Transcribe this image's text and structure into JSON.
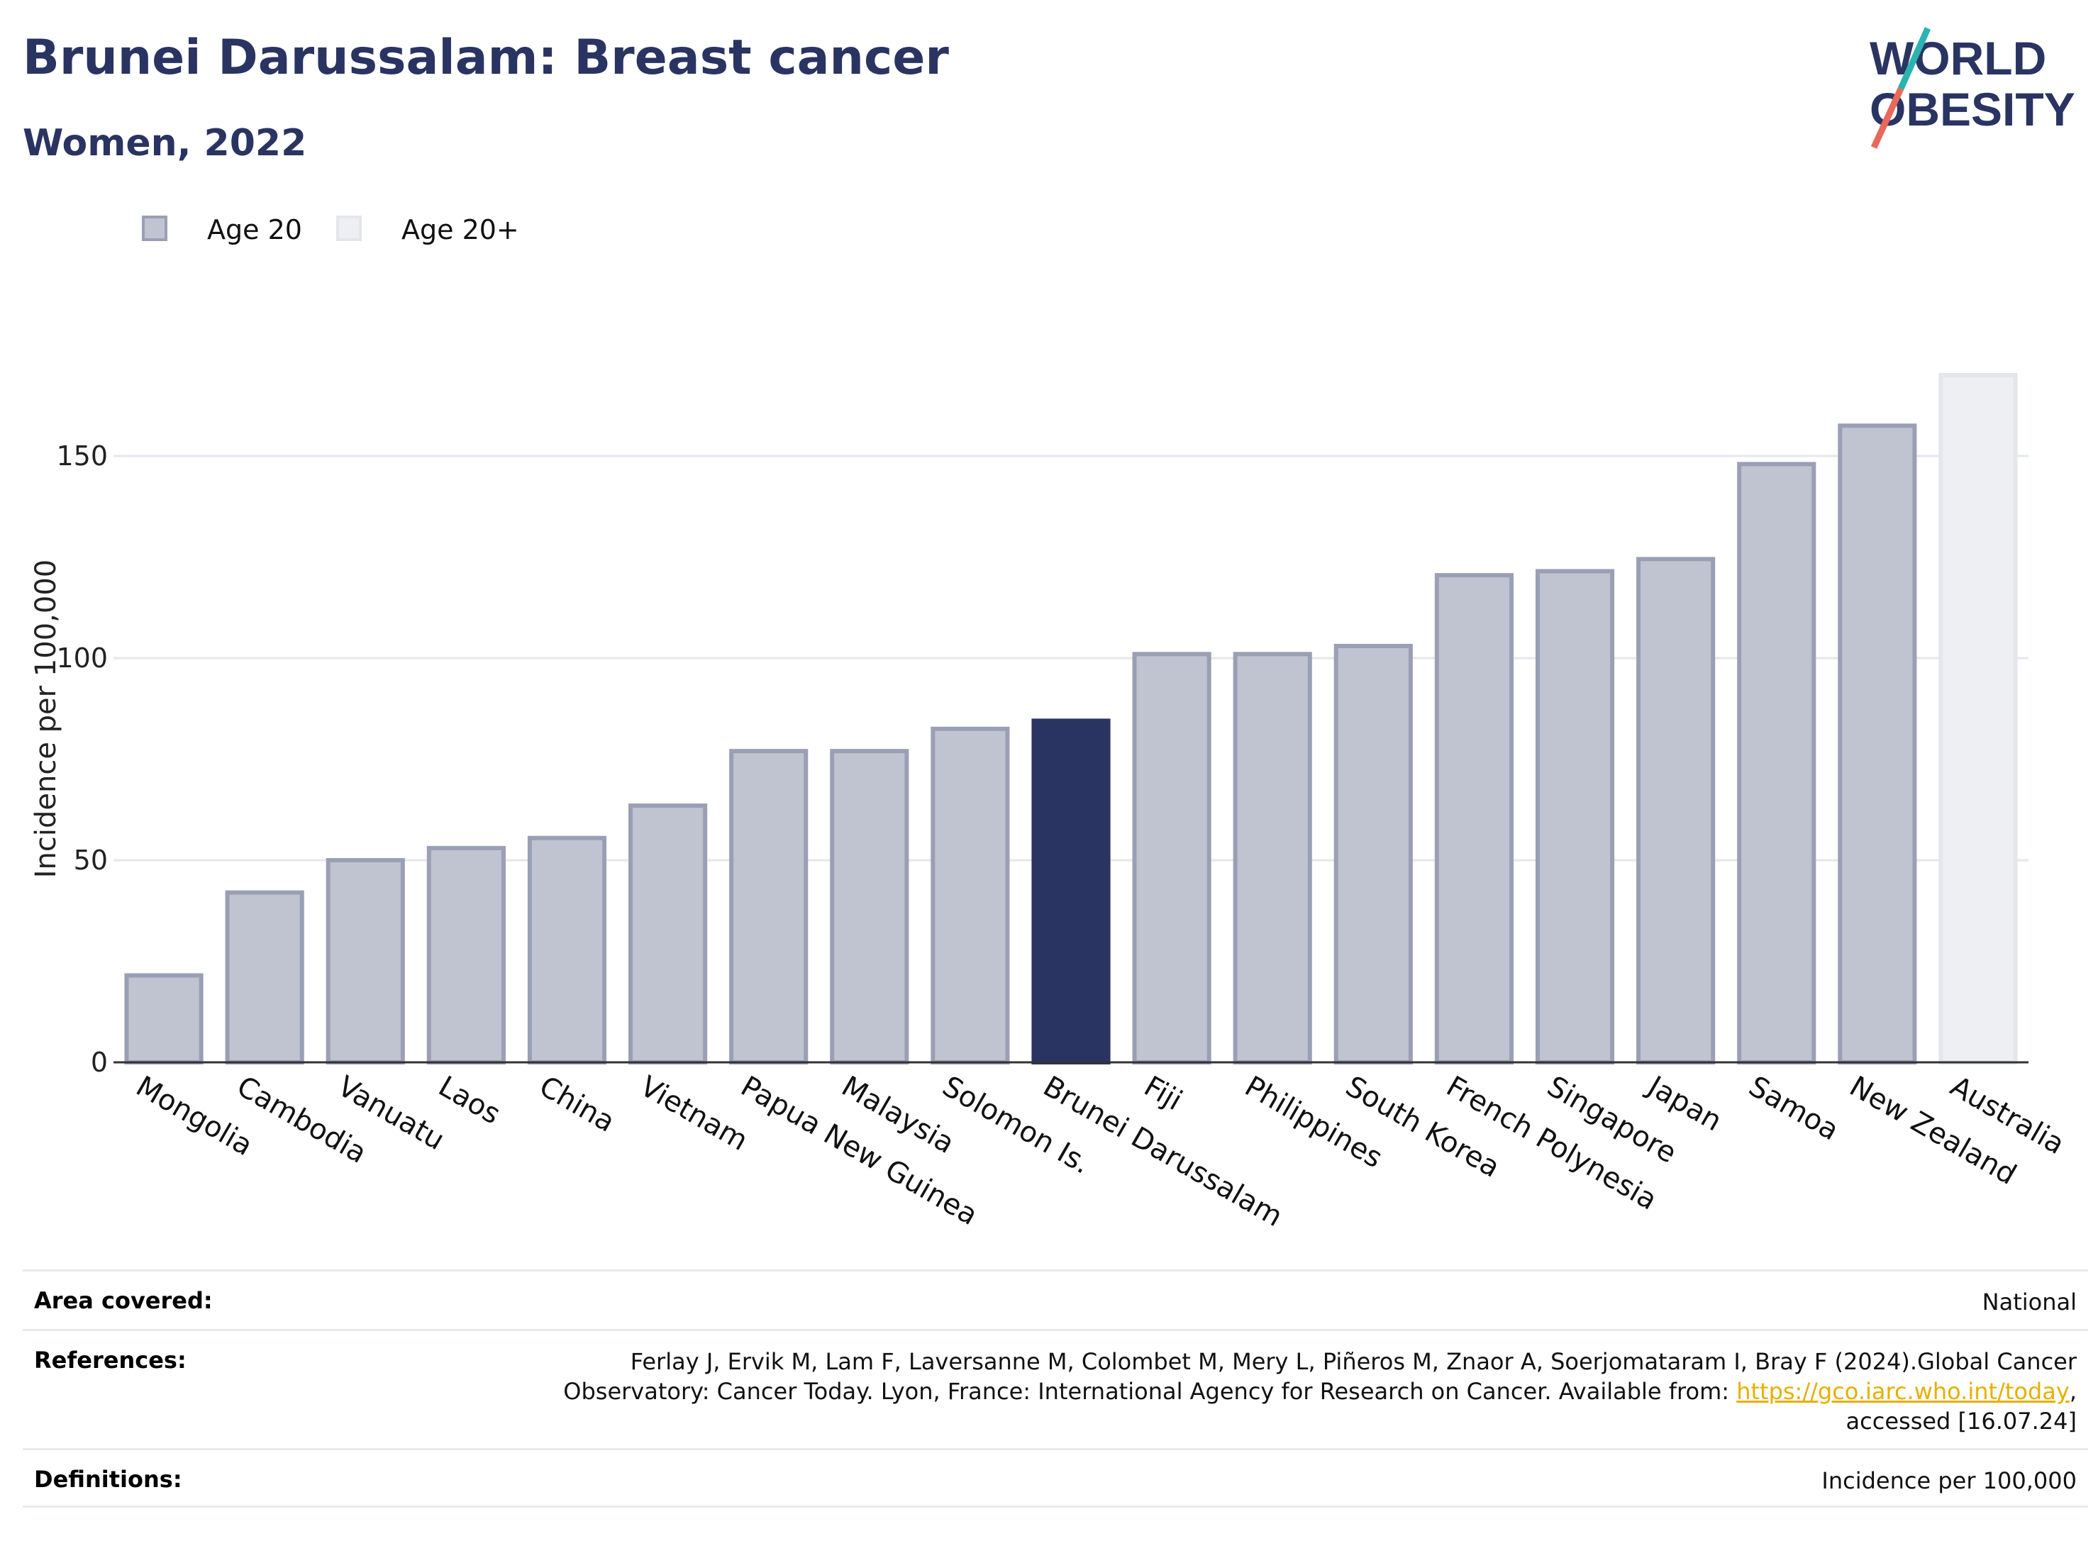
{
  "header": {
    "title": "Brunei Darussalam: Breast cancer",
    "subtitle": "Women, 2022"
  },
  "logo": {
    "line1": "WORLD",
    "line2": "OBESITY",
    "colors": {
      "text": "#2a3462",
      "slash_top": "#2ab3b0",
      "slash_bottom": "#e8685a"
    }
  },
  "legend": {
    "items": [
      {
        "label": "Age 20",
        "fill": "#c0c3d0",
        "stroke": "#9a9fb5"
      },
      {
        "label": "Age 20+",
        "fill": "#eeeff3",
        "stroke": "#e4e6ec"
      }
    ]
  },
  "chart_data": {
    "type": "bar",
    "title": "",
    "xlabel": "",
    "ylabel": "Incidence per 100,000",
    "ylim": [
      0,
      170
    ],
    "yticks": [
      0,
      50,
      100,
      150
    ],
    "grid": true,
    "legend_position": "top-left",
    "categories": [
      "Mongolia",
      "Cambodia",
      "Vanuatu",
      "Laos",
      "China",
      "Vietnam",
      "Papua New Guinea",
      "Malaysia",
      "Solomon Is.",
      "Brunei Darussalam",
      "Fiji",
      "Philippines",
      "South Korea",
      "French Polynesia",
      "Singapore",
      "Japan",
      "Samoa",
      "New Zealand",
      "Australia"
    ],
    "values": [
      21.5,
      42,
      50,
      53,
      55.5,
      63.5,
      77,
      77,
      82.5,
      84.5,
      101,
      101,
      103,
      120.5,
      121.5,
      124.5,
      148,
      157.5,
      170
    ],
    "series_index": [
      0,
      0,
      0,
      0,
      0,
      0,
      0,
      0,
      0,
      0,
      0,
      0,
      0,
      0,
      0,
      0,
      0,
      0,
      1
    ],
    "highlight": "Brunei Darussalam",
    "colors": {
      "bar_fill": "#c0c3d0",
      "bar_stroke": "#9a9fb5",
      "bar_alt_fill": "#eeeff3",
      "bar_alt_stroke": "#e4e6ec",
      "highlight": "#2a3462",
      "grid": "#e5e7ec",
      "axis": "#333333"
    }
  },
  "footer": {
    "rows": [
      {
        "label": "Area covered:",
        "value": "National"
      },
      {
        "label": "References:",
        "value_lines": [
          "Ferlay J, Ervik M, Lam F, Laversanne M, Colombet M, Mery L, Piñeros M, Znaor A, Soerjomataram I, Bray F (2024).Global Cancer",
          "Observatory: Cancer Today. Lyon, France: International Agency for Research on Cancer. Available from: "
        ],
        "link_text": "https://gco.iarc.who.int/today",
        "after_link": ",",
        "line3": "accessed [16.07.24]"
      },
      {
        "label": "Definitions:",
        "value": "Incidence per 100,000"
      }
    ]
  }
}
